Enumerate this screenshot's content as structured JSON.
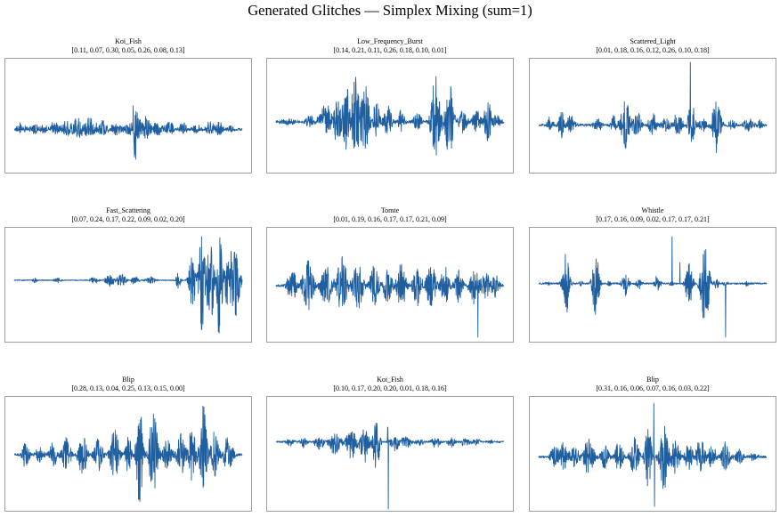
{
  "figure_title": "Generated Glitches — Simplex Mixing (sum=1)",
  "colors": {
    "line": "#1f5fa0",
    "frame": "#9e9e9e"
  },
  "chart_data": [
    {
      "type": "line",
      "title": "Koi_Fish",
      "weights": "[0.11, 0.07, 0.30, 0.05, 0.26, 0.08, 0.13]",
      "baseline": 0.62,
      "events": [
        [
          0.03,
          0.02,
          0.08
        ],
        [
          0.05,
          0.01,
          0.05
        ],
        [
          0.09,
          0.02,
          0.1
        ],
        [
          0.13,
          0.015,
          0.07
        ],
        [
          0.18,
          0.02,
          0.12
        ],
        [
          0.23,
          0.02,
          0.15
        ],
        [
          0.28,
          0.03,
          0.18
        ],
        [
          0.33,
          0.03,
          0.17
        ],
        [
          0.39,
          0.02,
          0.14
        ],
        [
          0.45,
          0.025,
          0.12
        ],
        [
          0.5,
          0.02,
          0.11
        ],
        [
          0.528,
          0.006,
          1.0
        ],
        [
          0.54,
          0.02,
          0.25
        ],
        [
          0.58,
          0.02,
          0.2
        ],
        [
          0.63,
          0.02,
          0.15
        ],
        [
          0.68,
          0.02,
          0.12
        ],
        [
          0.74,
          0.02,
          0.1
        ],
        [
          0.8,
          0.02,
          0.08
        ],
        [
          0.86,
          0.02,
          0.12
        ],
        [
          0.9,
          0.015,
          0.14
        ],
        [
          0.95,
          0.02,
          0.05
        ]
      ],
      "noise": 0.02
    },
    {
      "type": "line",
      "title": "Low_Frequency_Burst",
      "weights": "[0.14, 0.21, 0.11, 0.26, 0.18, 0.10, 0.01]",
      "baseline": 0.55,
      "events": [
        [
          0.05,
          0.03,
          0.06
        ],
        [
          0.15,
          0.02,
          0.12
        ],
        [
          0.22,
          0.03,
          0.28
        ],
        [
          0.27,
          0.02,
          0.4
        ],
        [
          0.31,
          0.02,
          0.55
        ],
        [
          0.35,
          0.02,
          0.75
        ],
        [
          0.39,
          0.02,
          0.6
        ],
        [
          0.44,
          0.02,
          0.3
        ],
        [
          0.49,
          0.02,
          0.25
        ],
        [
          0.55,
          0.015,
          0.2
        ],
        [
          0.62,
          0.02,
          0.15
        ],
        [
          0.7,
          0.02,
          0.75
        ],
        [
          0.76,
          0.02,
          0.65
        ],
        [
          0.82,
          0.02,
          0.2
        ],
        [
          0.88,
          0.02,
          0.18
        ],
        [
          0.93,
          0.02,
          0.35
        ],
        [
          0.97,
          0.02,
          0.1
        ]
      ],
      "noise": 0.02
    },
    {
      "type": "line",
      "title": "Scattered_Light",
      "weights": "[0.01, 0.18, 0.16, 0.12, 0.26, 0.10, 0.18]",
      "baseline": 0.58,
      "events": [
        [
          0.05,
          0.015,
          0.12
        ],
        [
          0.1,
          0.015,
          0.25
        ],
        [
          0.14,
          0.02,
          0.15
        ],
        [
          0.26,
          0.02,
          0.12
        ],
        [
          0.33,
          0.015,
          0.15
        ],
        [
          0.38,
          0.02,
          0.45
        ],
        [
          0.43,
          0.02,
          0.2
        ],
        [
          0.5,
          0.02,
          0.18
        ],
        [
          0.56,
          0.02,
          0.12
        ],
        [
          0.61,
          0.02,
          0.2
        ],
        [
          0.67,
          0.015,
          0.4
        ],
        [
          0.72,
          0.02,
          0.12
        ],
        [
          0.78,
          0.02,
          0.45
        ],
        [
          0.85,
          0.015,
          0.1
        ],
        [
          0.92,
          0.02,
          0.12
        ],
        [
          0.97,
          0.015,
          0.08
        ]
      ],
      "spikes": [
        [
          0.665,
          1.0
        ],
        [
          0.78,
          -0.6
        ]
      ],
      "noise": 0.02
    },
    {
      "type": "line",
      "title": "Fast_Scattering",
      "weights": "[0.07, 0.24, 0.17, 0.22, 0.09, 0.02, 0.20]",
      "baseline": 0.45,
      "events": [
        [
          0.09,
          0.01,
          0.04
        ],
        [
          0.19,
          0.015,
          0.05
        ],
        [
          0.35,
          0.02,
          0.06
        ],
        [
          0.42,
          0.02,
          0.1
        ],
        [
          0.47,
          0.02,
          0.12
        ],
        [
          0.53,
          0.02,
          0.06
        ],
        [
          0.6,
          0.02,
          0.08
        ],
        [
          0.72,
          0.01,
          0.15
        ],
        [
          0.78,
          0.015,
          0.45
        ],
        [
          0.82,
          0.015,
          0.85
        ],
        [
          0.86,
          0.02,
          0.65
        ],
        [
          0.9,
          0.015,
          0.85
        ],
        [
          0.94,
          0.02,
          0.45
        ],
        [
          0.97,
          0.02,
          0.6
        ]
      ],
      "noise": 0.008
    },
    {
      "type": "line",
      "title": "Tomte",
      "weights": "[0.01, 0.19, 0.16, 0.17, 0.17, 0.21, 0.09]",
      "baseline": 0.5,
      "events": [
        [
          0.07,
          0.02,
          0.3
        ],
        [
          0.14,
          0.025,
          0.45
        ],
        [
          0.22,
          0.025,
          0.35
        ],
        [
          0.29,
          0.025,
          0.5
        ],
        [
          0.36,
          0.025,
          0.4
        ],
        [
          0.43,
          0.02,
          0.35
        ],
        [
          0.49,
          0.02,
          0.3
        ],
        [
          0.55,
          0.02,
          0.45
        ],
        [
          0.62,
          0.02,
          0.35
        ],
        [
          0.68,
          0.02,
          0.45
        ],
        [
          0.74,
          0.02,
          0.35
        ],
        [
          0.8,
          0.02,
          0.3
        ],
        [
          0.87,
          0.02,
          0.4
        ],
        [
          0.92,
          0.02,
          0.25
        ],
        [
          0.96,
          0.02,
          0.2
        ]
      ],
      "spikes": [
        [
          0.885,
          -0.95
        ]
      ],
      "noise": 0.02
    },
    {
      "type": "line",
      "title": "Whistle",
      "weights": "[0.17, 0.16, 0.09, 0.02, 0.17, 0.17, 0.21]",
      "baseline": 0.48,
      "events": [
        [
          0.04,
          0.01,
          0.03
        ],
        [
          0.12,
          0.015,
          0.55
        ],
        [
          0.19,
          0.01,
          0.05
        ],
        [
          0.25,
          0.015,
          0.6
        ],
        [
          0.31,
          0.01,
          0.05
        ],
        [
          0.38,
          0.015,
          0.2
        ],
        [
          0.44,
          0.015,
          0.08
        ],
        [
          0.52,
          0.015,
          0.15
        ],
        [
          0.58,
          0.01,
          0.05
        ],
        [
          0.66,
          0.015,
          0.4
        ],
        [
          0.73,
          0.02,
          0.7
        ],
        [
          0.78,
          0.01,
          0.1
        ],
        [
          0.82,
          0.01,
          0.05
        ],
        [
          0.91,
          0.01,
          0.05
        ]
      ],
      "spikes": [
        [
          0.585,
          0.9
        ],
        [
          0.62,
          0.4
        ],
        [
          0.82,
          -0.95
        ]
      ],
      "noise": 0.015
    },
    {
      "type": "line",
      "title": "Blip",
      "weights": "[0.28, 0.13, 0.04, 0.25, 0.13, 0.15, 0.00]",
      "baseline": 0.5,
      "events": [
        [
          0.05,
          0.015,
          0.25
        ],
        [
          0.11,
          0.02,
          0.15
        ],
        [
          0.17,
          0.02,
          0.2
        ],
        [
          0.23,
          0.02,
          0.3
        ],
        [
          0.3,
          0.02,
          0.35
        ],
        [
          0.37,
          0.02,
          0.3
        ],
        [
          0.44,
          0.02,
          0.45
        ],
        [
          0.5,
          0.015,
          0.35
        ],
        [
          0.55,
          0.015,
          0.85
        ],
        [
          0.61,
          0.02,
          0.75
        ],
        [
          0.67,
          0.02,
          0.25
        ],
        [
          0.73,
          0.02,
          0.35
        ],
        [
          0.78,
          0.02,
          0.45
        ],
        [
          0.83,
          0.015,
          0.85
        ],
        [
          0.88,
          0.02,
          0.4
        ],
        [
          0.94,
          0.02,
          0.35
        ]
      ],
      "noise": 0.02
    },
    {
      "type": "line",
      "title": "Koi_Fish",
      "weights": "[0.10, 0.17, 0.20, 0.20, 0.01, 0.18, 0.16]",
      "baseline": 0.38,
      "events": [
        [
          0.06,
          0.02,
          0.06
        ],
        [
          0.12,
          0.02,
          0.08
        ],
        [
          0.19,
          0.02,
          0.12
        ],
        [
          0.26,
          0.025,
          0.2
        ],
        [
          0.33,
          0.025,
          0.25
        ],
        [
          0.39,
          0.02,
          0.3
        ],
        [
          0.44,
          0.015,
          0.45
        ],
        [
          0.52,
          0.02,
          0.15
        ],
        [
          0.57,
          0.02,
          0.12
        ],
        [
          0.63,
          0.02,
          0.06
        ],
        [
          0.7,
          0.02,
          0.1
        ],
        [
          0.77,
          0.02,
          0.08
        ],
        [
          0.83,
          0.02,
          0.07
        ],
        [
          0.88,
          0.02,
          0.06
        ],
        [
          0.95,
          0.02,
          0.03
        ]
      ],
      "spikes": [
        [
          0.49,
          0.35
        ],
        [
          0.493,
          -1.0
        ]
      ],
      "noise": 0.015
    },
    {
      "type": "line",
      "title": "Blip",
      "weights": "[0.31, 0.16, 0.06, 0.07, 0.16, 0.03, 0.22]",
      "baseline": 0.52,
      "events": [
        [
          0.07,
          0.02,
          0.18
        ],
        [
          0.11,
          0.02,
          0.25
        ],
        [
          0.16,
          0.02,
          0.2
        ],
        [
          0.22,
          0.025,
          0.3
        ],
        [
          0.29,
          0.02,
          0.2
        ],
        [
          0.35,
          0.02,
          0.25
        ],
        [
          0.42,
          0.02,
          0.35
        ],
        [
          0.48,
          0.015,
          0.55
        ],
        [
          0.55,
          0.02,
          0.6
        ],
        [
          0.6,
          0.02,
          0.3
        ],
        [
          0.66,
          0.02,
          0.25
        ],
        [
          0.71,
          0.02,
          0.3
        ],
        [
          0.76,
          0.02,
          0.2
        ],
        [
          0.82,
          0.02,
          0.25
        ],
        [
          0.88,
          0.02,
          0.12
        ],
        [
          0.94,
          0.02,
          0.08
        ]
      ],
      "spikes": [
        [
          0.505,
          0.95
        ],
        [
          0.508,
          -0.95
        ]
      ],
      "noise": 0.02
    }
  ]
}
